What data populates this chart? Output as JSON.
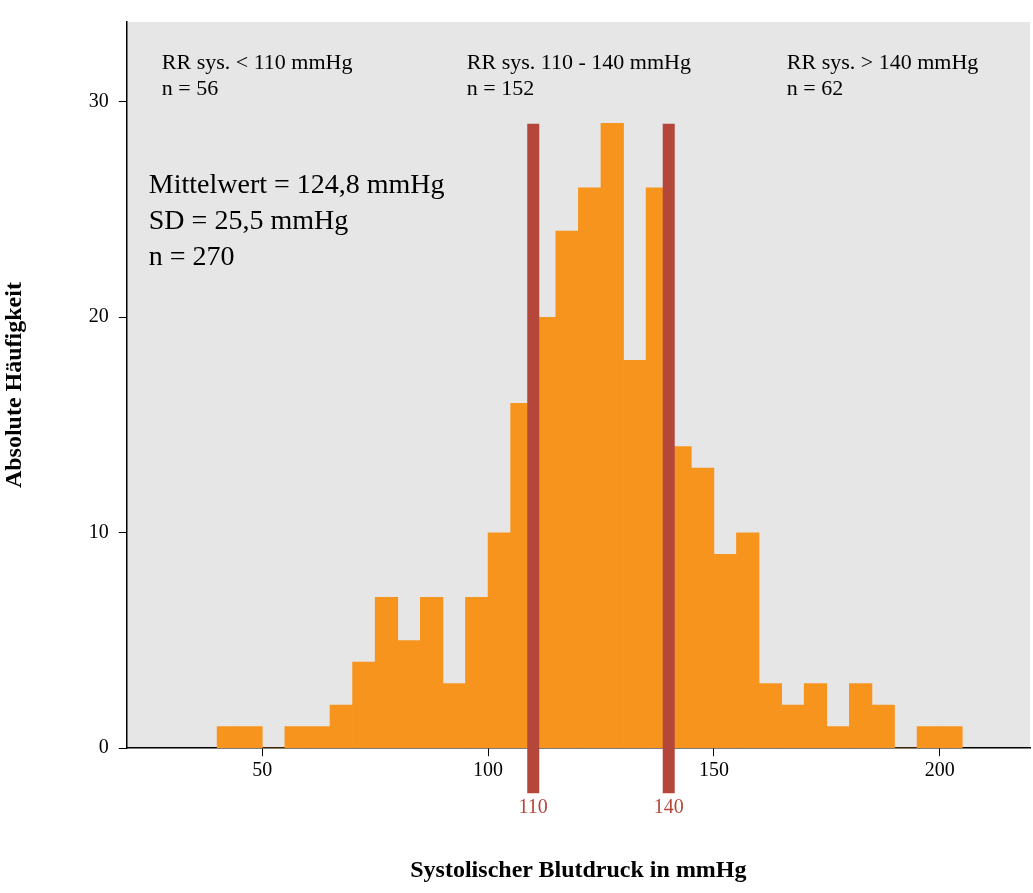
{
  "chart_data": {
    "type": "histogram",
    "xlabel": "Systolischer Blutdruck in mmHg",
    "ylabel": "Absolute Häufigkeit",
    "bins": [
      40,
      45,
      50,
      55,
      60,
      65,
      70,
      75,
      80,
      85,
      90,
      95,
      100,
      105,
      110,
      115,
      120,
      125,
      130,
      135,
      140,
      145,
      150,
      155,
      160,
      165,
      170,
      175,
      180,
      185,
      190,
      195,
      200,
      205
    ],
    "values": [
      1,
      1,
      0,
      1,
      1,
      2,
      4,
      7,
      5,
      7,
      3,
      7,
      10,
      16,
      20,
      24,
      26,
      29,
      18,
      26,
      14,
      13,
      9,
      10,
      3,
      2,
      3,
      1,
      3,
      2,
      0,
      1,
      1
    ],
    "color": "#f7941d",
    "xlim": [
      20,
      220
    ],
    "xticks": [
      50,
      100,
      150,
      200
    ],
    "ylim": [
      0,
      33.7
    ],
    "yticks": [
      0,
      10,
      20,
      30
    ],
    "grid": false,
    "legend": false,
    "ref_lines": [
      {
        "axis": "x",
        "value": 110,
        "label": "110",
        "color": "#b5473a"
      },
      {
        "axis": "x",
        "value": 140,
        "label": "140",
        "color": "#b5473a"
      }
    ],
    "annotations": [
      "RR sys. < 110 mmHg\nn = 56",
      "RR sys. 110 - 140 mmHg\nn = 152",
      "RR sys. > 140 mmHg\nn = 62",
      "Mittelwert = 124,8 mmHg\nSD = 25,5 mmHg\nn = 270"
    ]
  }
}
